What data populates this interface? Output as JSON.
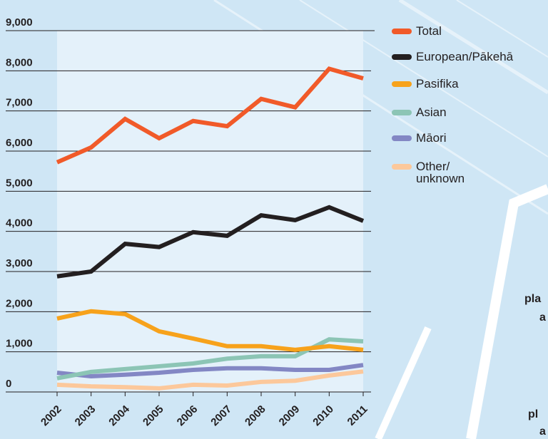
{
  "chart_data": {
    "type": "line",
    "x": [
      "2002",
      "2003",
      "2004",
      "2005",
      "2006",
      "2007",
      "2008",
      "2009",
      "2010",
      "2011"
    ],
    "series": [
      {
        "name": "Total",
        "color": "#f15a29",
        "values": [
          5720,
          6090,
          6800,
          6320,
          6750,
          6620,
          7300,
          7090,
          8050,
          7810
        ]
      },
      {
        "name": "European/Pākehā",
        "color": "#231f20",
        "values": [
          2880,
          3000,
          3690,
          3610,
          3980,
          3890,
          4400,
          4280,
          4600,
          4260
        ]
      },
      {
        "name": "Pasifika",
        "color": "#f7a21b",
        "values": [
          1830,
          2010,
          1940,
          1510,
          1330,
          1140,
          1140,
          1050,
          1140,
          1050
        ]
      },
      {
        "name": "Asian",
        "color": "#8cc5b5",
        "values": [
          340,
          500,
          570,
          640,
          710,
          830,
          890,
          890,
          1310,
          1260
        ]
      },
      {
        "name": "Māori",
        "color": "#8387c4",
        "values": [
          480,
          390,
          430,
          480,
          550,
          590,
          590,
          550,
          550,
          670
        ]
      },
      {
        "name": "Other/ unknown",
        "color": "#fcc89b",
        "values": [
          180,
          140,
          120,
          90,
          180,
          160,
          250,
          280,
          410,
          510
        ]
      }
    ],
    "ylim": [
      0,
      9000
    ],
    "yticks": [
      0,
      {
        "value": 1000,
        "label": "1,000"
      },
      {
        "value": 2000,
        "label": "2,000"
      },
      {
        "value": 3000,
        "label": "3,000"
      },
      {
        "value": 4000,
        "label": "4,000"
      },
      {
        "value": 5000,
        "label": "5,000"
      },
      {
        "value": 6000,
        "label": "6,000"
      },
      {
        "value": 7000,
        "label": "7,000"
      },
      {
        "value": 8000,
        "label": "8,000"
      },
      {
        "value": 9000,
        "label": "9,000"
      }
    ],
    "grid": true,
    "legend": "right"
  },
  "background_text": [
    "pla",
    "a",
    "pl",
    "a"
  ]
}
